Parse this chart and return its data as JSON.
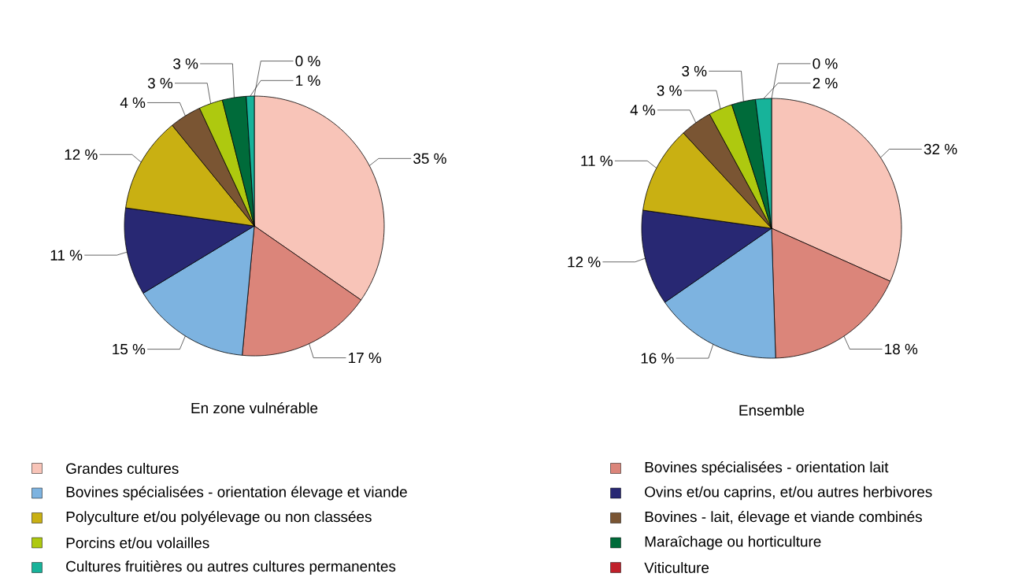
{
  "chart_data": [
    {
      "type": "pie",
      "title": "En zone vulnérable",
      "legend": "bottom",
      "categories": [
        "Grandes cultures",
        "Bovines spécialisées - orientation lait",
        "Bovines spécialisées - orientation élevage et viande",
        "Ovins et/ou  caprins, et/ou autres herbivores",
        "Polyculture et/ou polyélevage ou non classées",
        "Bovines - lait, élevage et viande combinés",
        "Porcins et/ou volailles",
        "Maraîchage ou horticulture",
        "Cultures fruitières ou autres cultures permanentes",
        "Viticulture"
      ],
      "values": [
        35,
        17,
        15,
        11,
        12,
        4,
        3,
        3,
        1,
        0
      ],
      "value_labels": [
        "35 %",
        "17 %",
        "15 %",
        "11 %",
        "12 %",
        "4 %",
        "3 %",
        "3 %",
        "1 %",
        "0 %"
      ],
      "colors": [
        "#f8c4b8",
        "#db857a",
        "#7db3e0",
        "#282873",
        "#c9b012",
        "#7a5533",
        "#aec90f",
        "#006b3a",
        "#17b39a",
        "#c0202a"
      ]
    },
    {
      "type": "pie",
      "title": "Ensemble",
      "values": [
        32,
        18,
        16,
        12,
        11,
        4,
        3,
        3,
        2,
        0
      ],
      "value_labels": [
        "32 %",
        "18 %",
        "16 %",
        "12 %",
        "11 %",
        "4 %",
        "3 %",
        "3 %",
        "2 %",
        "0 %"
      ],
      "colors": [
        "#f8c4b8",
        "#db857a",
        "#7db3e0",
        "#282873",
        "#c9b012",
        "#7a5533",
        "#aec90f",
        "#006b3a",
        "#17b39a",
        "#c0202a"
      ]
    }
  ]
}
